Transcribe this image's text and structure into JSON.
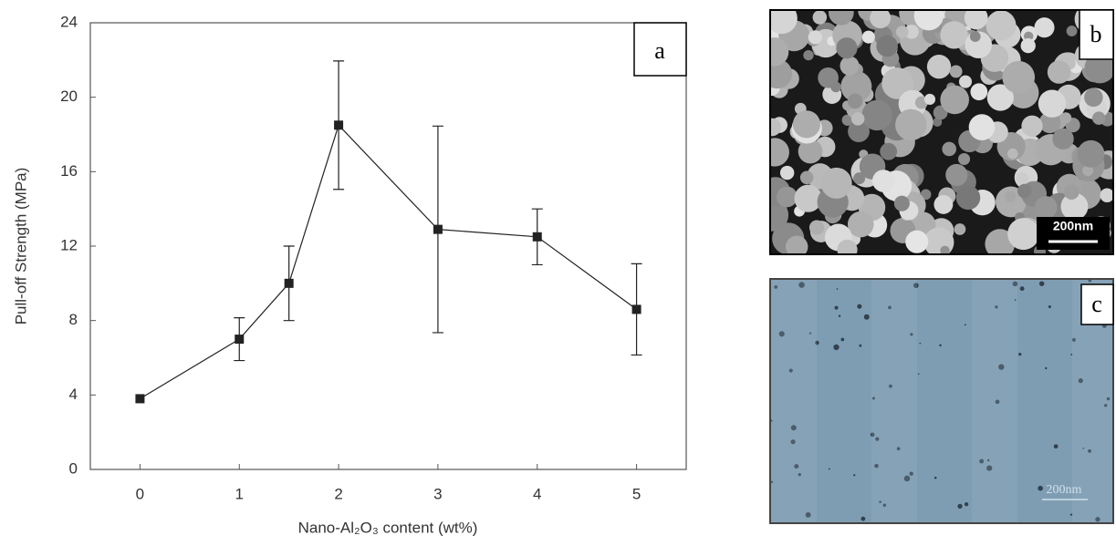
{
  "chart_data": {
    "type": "line",
    "annotation": "a",
    "xlabel": "Nano-Al₂O₃ content (wt%)",
    "ylabel": "Pull-off Strength (MPa)",
    "x": [
      0,
      1,
      1.5,
      2,
      3,
      4,
      5
    ],
    "values": [
      3.8,
      7.0,
      10.0,
      18.5,
      12.9,
      12.5,
      8.6
    ],
    "errors": [
      null,
      1.15,
      2.0,
      3.45,
      5.55,
      1.5,
      2.45
    ],
    "color": "#222222",
    "xlim": [
      -0.5,
      5.5
    ],
    "xticks": [
      0,
      1,
      2,
      3,
      4,
      5
    ],
    "ylim": [
      0,
      24
    ],
    "yticks": [
      0,
      4,
      8,
      12,
      16,
      20,
      24
    ]
  },
  "panels": [
    {
      "label": "b",
      "scale_bar": "200nm"
    },
    {
      "label": "c",
      "scale_bar": "200nm"
    }
  ]
}
